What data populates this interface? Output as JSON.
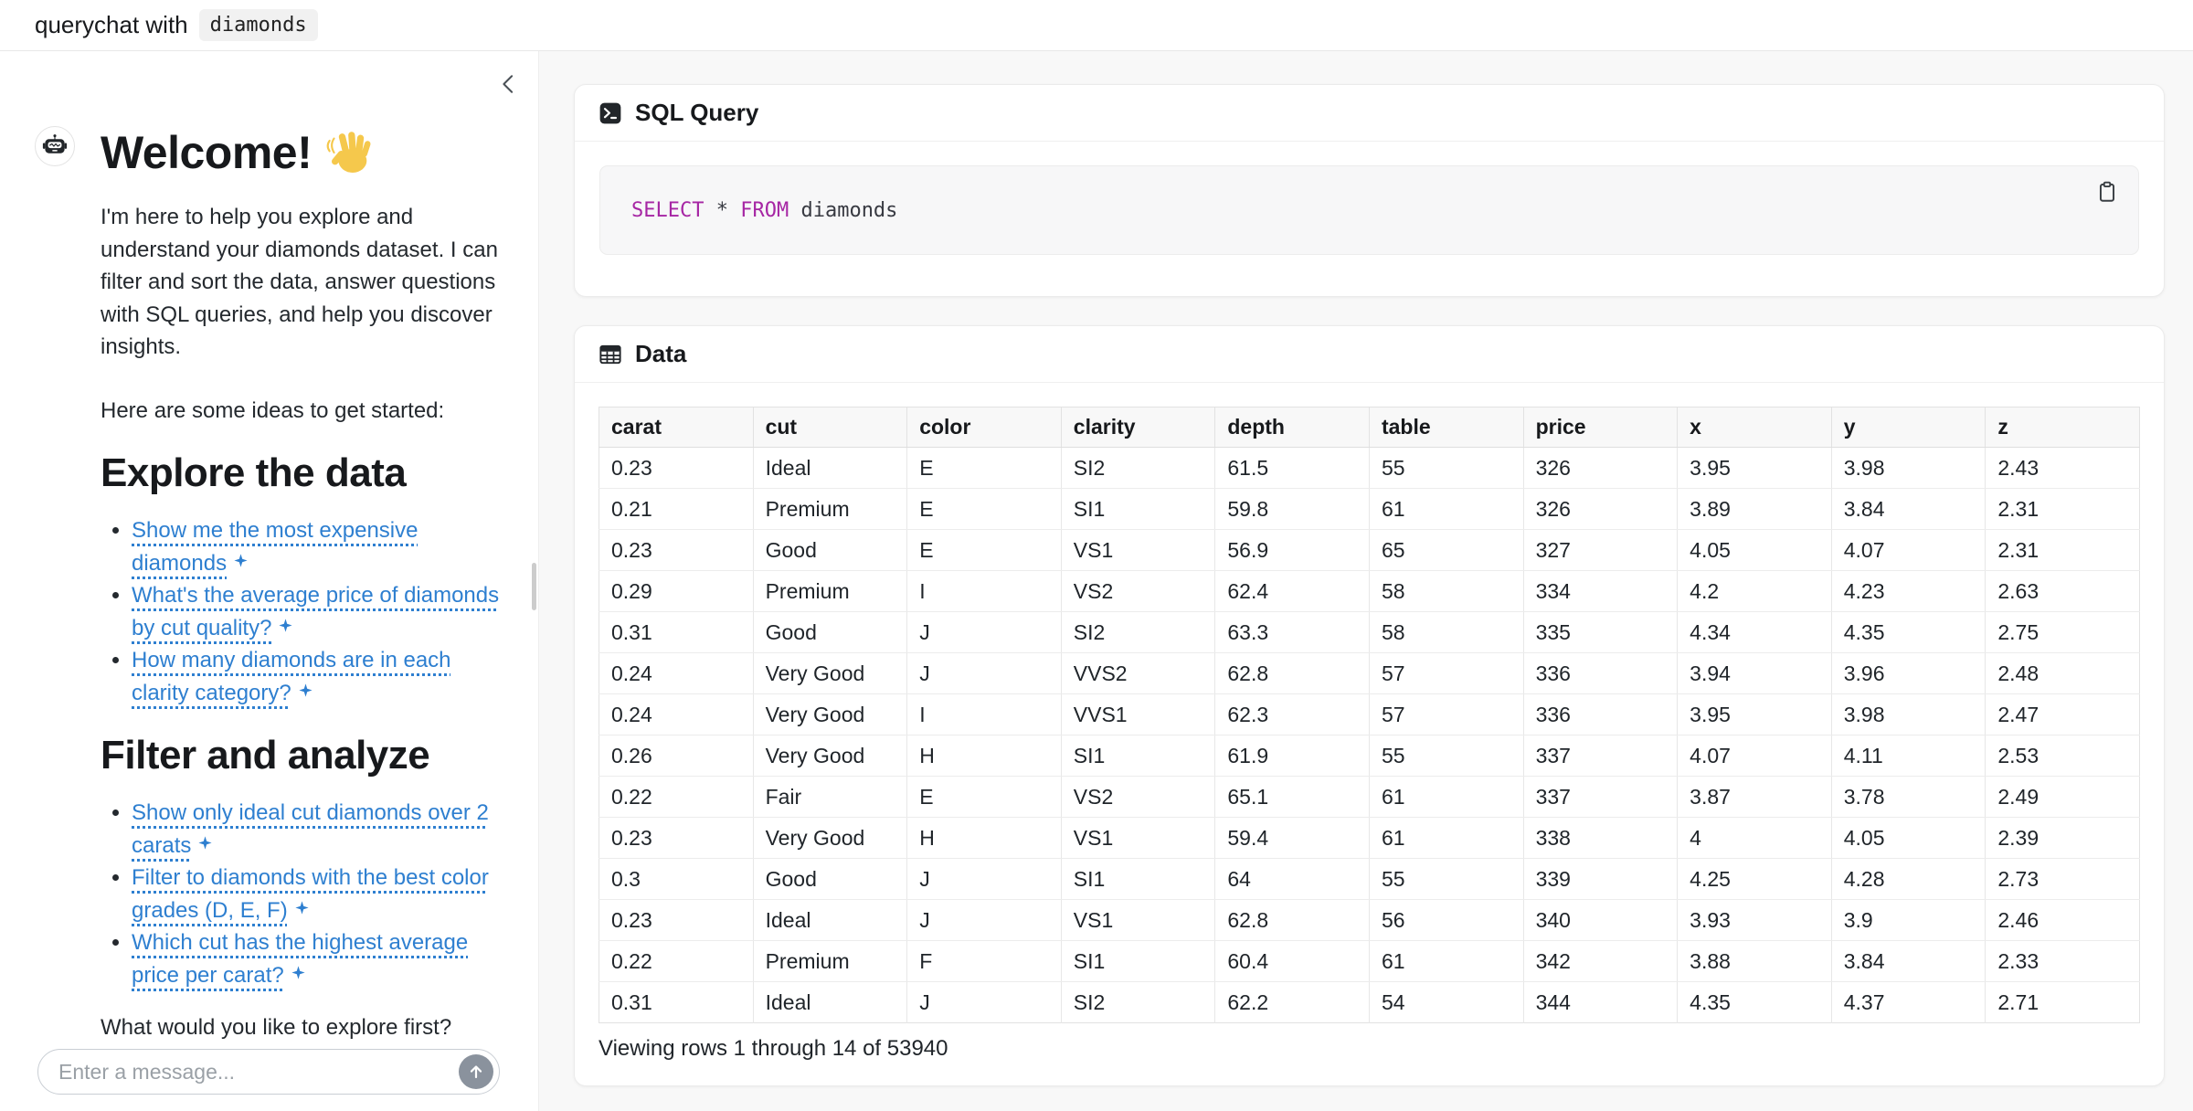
{
  "header": {
    "title_prefix": "querychat with",
    "dataset_name": "diamonds"
  },
  "sidebar": {
    "welcome_heading": "Welcome!",
    "intro": "I'm here to help you explore and understand your diamonds dataset. I can filter and sort the data, answer questions with SQL queries, and help you discover insights.",
    "ideas_lead": "Here are some ideas to get started:",
    "sections": [
      {
        "heading": "Explore the data",
        "suggestions": [
          "Show me the most expensive diamonds",
          "What's the average price of diamonds by cut quality?",
          "How many diamonds are in each clarity category?"
        ]
      },
      {
        "heading": "Filter and analyze",
        "suggestions": [
          "Show only ideal cut diamonds over 2 carats",
          "Filter to diamonds with the best color grades (D, E, F)",
          "Which cut has the highest average price per carat?"
        ]
      }
    ],
    "closing": "What would you like to explore first?",
    "input_placeholder": "Enter a message..."
  },
  "sql_card": {
    "title": "SQL Query",
    "tokens": [
      {
        "text": "SELECT",
        "keyword": true
      },
      {
        "text": " * ",
        "keyword": false
      },
      {
        "text": "FROM",
        "keyword": true
      },
      {
        "text": " diamonds",
        "keyword": false
      }
    ]
  },
  "data_card": {
    "title": "Data",
    "columns": [
      "carat",
      "cut",
      "color",
      "clarity",
      "depth",
      "table",
      "price",
      "x",
      "y",
      "z"
    ],
    "rows": [
      [
        "0.23",
        "Ideal",
        "E",
        "SI2",
        "61.5",
        "55",
        "326",
        "3.95",
        "3.98",
        "2.43"
      ],
      [
        "0.21",
        "Premium",
        "E",
        "SI1",
        "59.8",
        "61",
        "326",
        "3.89",
        "3.84",
        "2.31"
      ],
      [
        "0.23",
        "Good",
        "E",
        "VS1",
        "56.9",
        "65",
        "327",
        "4.05",
        "4.07",
        "2.31"
      ],
      [
        "0.29",
        "Premium",
        "I",
        "VS2",
        "62.4",
        "58",
        "334",
        "4.2",
        "4.23",
        "2.63"
      ],
      [
        "0.31",
        "Good",
        "J",
        "SI2",
        "63.3",
        "58",
        "335",
        "4.34",
        "4.35",
        "2.75"
      ],
      [
        "0.24",
        "Very Good",
        "J",
        "VVS2",
        "62.8",
        "57",
        "336",
        "3.94",
        "3.96",
        "2.48"
      ],
      [
        "0.24",
        "Very Good",
        "I",
        "VVS1",
        "62.3",
        "57",
        "336",
        "3.95",
        "3.98",
        "2.47"
      ],
      [
        "0.26",
        "Very Good",
        "H",
        "SI1",
        "61.9",
        "55",
        "337",
        "4.07",
        "4.11",
        "2.53"
      ],
      [
        "0.22",
        "Fair",
        "E",
        "VS2",
        "65.1",
        "61",
        "337",
        "3.87",
        "3.78",
        "2.49"
      ],
      [
        "0.23",
        "Very Good",
        "H",
        "VS1",
        "59.4",
        "61",
        "338",
        "4",
        "4.05",
        "2.39"
      ],
      [
        "0.3",
        "Good",
        "J",
        "SI1",
        "64",
        "55",
        "339",
        "4.25",
        "4.28",
        "2.73"
      ],
      [
        "0.23",
        "Ideal",
        "J",
        "VS1",
        "62.8",
        "56",
        "340",
        "3.93",
        "3.9",
        "2.46"
      ],
      [
        "0.22",
        "Premium",
        "F",
        "SI1",
        "60.4",
        "61",
        "342",
        "3.88",
        "3.84",
        "2.33"
      ],
      [
        "0.31",
        "Ideal",
        "J",
        "SI2",
        "62.2",
        "54",
        "344",
        "4.35",
        "4.37",
        "2.71"
      ]
    ],
    "footer": "Viewing rows 1 through 14 of 53940"
  },
  "colors": {
    "link_blue": "#2e7fd0",
    "sql_keyword_purple": "#a626a4",
    "send_button_gray": "#8a929d",
    "main_background": "#f8f8f8"
  }
}
